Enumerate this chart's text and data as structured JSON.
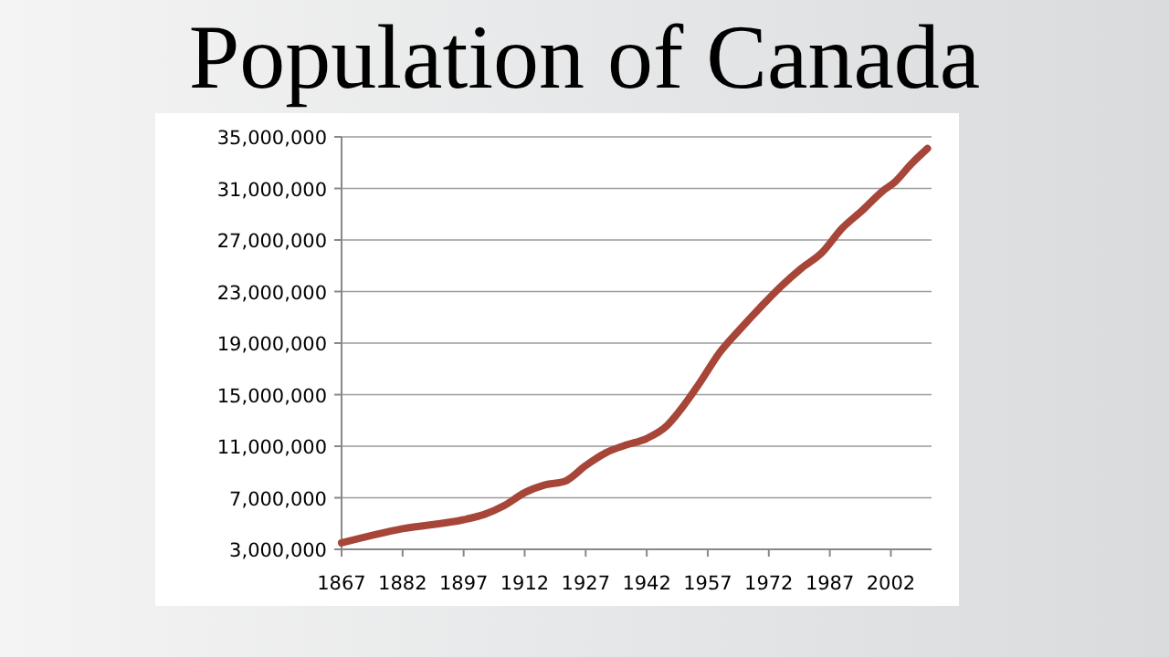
{
  "chart_data": {
    "type": "line",
    "title": "Population of Canada",
    "x": [
      1867,
      1882,
      1897,
      1902,
      1907,
      1912,
      1917,
      1922,
      1927,
      1932,
      1937,
      1942,
      1947,
      1950,
      1955,
      1960,
      1965,
      1970,
      1975,
      1980,
      1985,
      1990,
      1995,
      2000,
      2003,
      2007,
      2011
    ],
    "series": [
      {
        "color": "#a64538",
        "values": [
          3500000,
          4600000,
          5300000,
          5700000,
          6400000,
          7400000,
          8000000,
          8300000,
          9500000,
          10500000,
          11100000,
          11600000,
          12600000,
          13700000,
          15900000,
          18300000,
          20100000,
          21800000,
          23400000,
          24800000,
          26000000,
          27900000,
          29300000,
          30800000,
          31500000,
          32900000,
          34100000
        ]
      }
    ],
    "xlim": [
      1867,
      2012
    ],
    "xticks": [
      1867,
      1882,
      1897,
      1912,
      1927,
      1942,
      1957,
      1972,
      1987,
      2002
    ],
    "ylim": [
      3000000,
      35000000
    ],
    "yticks": [
      {
        "value": 3000000,
        "label": "3,000,000"
      },
      {
        "value": 7000000,
        "label": "7,000,000"
      },
      {
        "value": 11000000,
        "label": "11,000,000"
      },
      {
        "value": 15000000,
        "label": "15,000,000"
      },
      {
        "value": 19000000,
        "label": "19,000,000"
      },
      {
        "value": 23000000,
        "label": "23,000,000"
      },
      {
        "value": 27000000,
        "label": "27,000,000"
      },
      {
        "value": 31000000,
        "label": "31,000,000"
      },
      {
        "value": 35000000,
        "label": "35,000,000"
      }
    ],
    "grid": "y",
    "marker": "none",
    "line_style": "solid"
  }
}
